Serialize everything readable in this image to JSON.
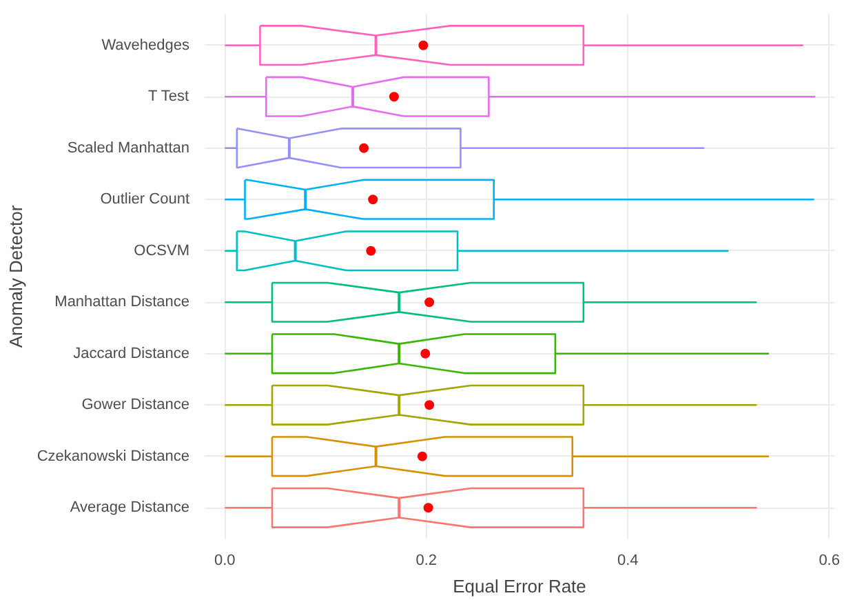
{
  "chart_data": {
    "type": "box",
    "orientation": "horizontal",
    "xlabel": "Equal Error Rate",
    "ylabel": "Anomaly Detector",
    "categories": [
      "Wavehedges",
      "T Test",
      "Scaled Manhattan",
      "Outlier Count",
      "OCSVM",
      "Manhattan Distance",
      "Jaccard Distance",
      "Gower Distance",
      "Czekanowski Distance",
      "Average Distance"
    ],
    "colors": [
      "#ff62bc",
      "#e76bf3",
      "#9590ff",
      "#00b0f6",
      "#00bfc4",
      "#00bf7d",
      "#39b600",
      "#a3a500",
      "#d89000",
      "#f8766d"
    ],
    "boxes": [
      {
        "low": 0,
        "q1": 0.035,
        "median": 0.15,
        "q3": 0.356,
        "high": 0.574,
        "mean": 0.197
      },
      {
        "low": 0,
        "q1": 0.041,
        "median": 0.127,
        "q3": 0.262,
        "high": 0.586,
        "mean": 0.168
      },
      {
        "low": 0,
        "q1": 0.012,
        "median": 0.064,
        "q3": 0.234,
        "high": 0.476,
        "mean": 0.138
      },
      {
        "low": 0,
        "q1": 0.02,
        "median": 0.08,
        "q3": 0.267,
        "high": 0.585,
        "mean": 0.147
      },
      {
        "low": 0,
        "q1": 0.012,
        "median": 0.07,
        "q3": 0.231,
        "high": 0.5,
        "mean": 0.145
      },
      {
        "low": 0,
        "q1": 0.047,
        "median": 0.173,
        "q3": 0.356,
        "high": 0.528,
        "mean": 0.203
      },
      {
        "low": 0,
        "q1": 0.047,
        "median": 0.173,
        "q3": 0.328,
        "high": 0.54,
        "mean": 0.199
      },
      {
        "low": 0,
        "q1": 0.047,
        "median": 0.173,
        "q3": 0.356,
        "high": 0.528,
        "mean": 0.203
      },
      {
        "low": 0,
        "q1": 0.047,
        "median": 0.15,
        "q3": 0.345,
        "high": 0.54,
        "mean": 0.196
      },
      {
        "low": 0,
        "q1": 0.047,
        "median": 0.173,
        "q3": 0.356,
        "high": 0.528,
        "mean": 0.202
      }
    ],
    "xlim": [
      -0.02,
      0.605
    ],
    "xticks": [
      {
        "value": 0,
        "label": "0.0"
      },
      {
        "value": 0.2,
        "label": "0.2"
      },
      {
        "value": 0.4,
        "label": "0.4"
      },
      {
        "value": 0.6,
        "label": "0.6"
      }
    ],
    "grid": true
  }
}
